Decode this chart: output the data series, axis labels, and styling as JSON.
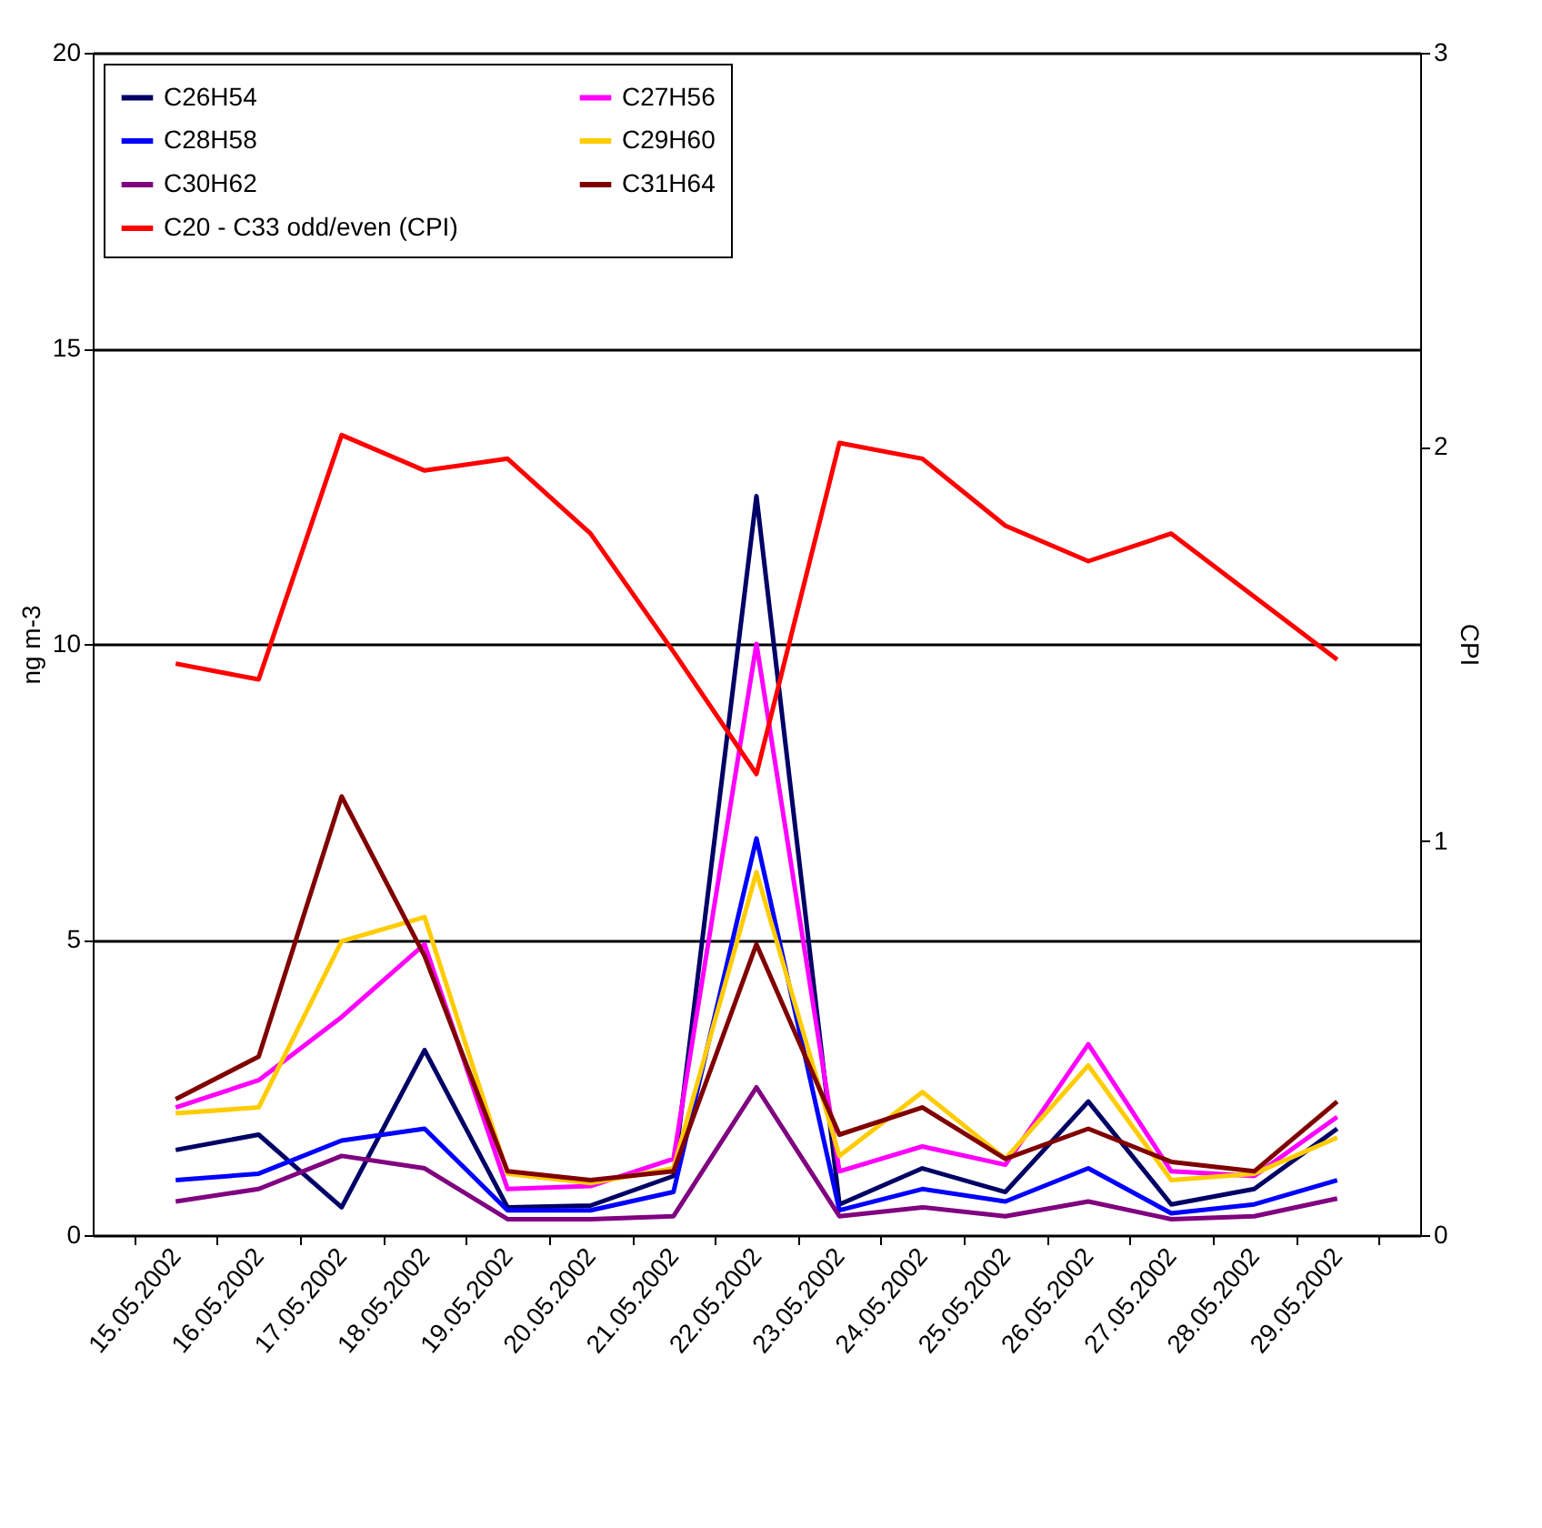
{
  "chart_data": {
    "type": "line",
    "ylabel": "ng m-3",
    "y2label": "CPI",
    "categories": [
      "15.05.2002",
      "16.05.2002",
      "17.05.2002",
      "18.05.2002",
      "19.05.2002",
      "20.05.2002",
      "21.05.2002",
      "22.05.2002",
      "23.05.2002",
      "24.05.2002",
      "25.05.2002",
      "26.05.2002",
      "27.05.2002",
      "28.05.2002",
      "29.05.2002"
    ],
    "series": [
      {
        "name": "C26H54",
        "color": "#000066",
        "values": [
          1.44,
          1.7,
          0.47,
          3.13,
          0.47,
          0.5,
          1.0,
          12.5,
          0.52,
          1.13,
          0.73,
          2.26,
          0.52,
          0.78,
          1.8
        ]
      },
      {
        "name": "C27H56",
        "color": "#ff00ff",
        "values": [
          2.16,
          2.62,
          3.69,
          4.92,
          0.78,
          0.83,
          1.29,
          10.0,
          1.08,
          1.5,
          1.19,
          3.23,
          1.08,
          1.0,
          2.0
        ]
      },
      {
        "name": "C28H58",
        "color": "#0000ff",
        "values": [
          0.93,
          1.04,
          1.6,
          1.8,
          0.42,
          0.42,
          0.73,
          6.71,
          0.42,
          0.78,
          0.57,
          1.13,
          0.37,
          0.52,
          0.93
        ]
      },
      {
        "name": "C29H60",
        "color": "#ffcc00",
        "values": [
          2.06,
          2.16,
          4.97,
          5.38,
          1.04,
          0.88,
          1.13,
          6.14,
          1.34,
          2.42,
          1.29,
          2.87,
          0.93,
          1.04,
          1.65
        ]
      },
      {
        "name": "C30H62",
        "color": "#800080",
        "values": [
          0.57,
          0.78,
          1.34,
          1.13,
          0.27,
          0.27,
          0.32,
          2.5,
          0.32,
          0.47,
          0.32,
          0.57,
          0.27,
          0.32,
          0.62
        ]
      },
      {
        "name": "C31H64",
        "color": "#800000",
        "values": [
          2.3,
          3.02,
          7.42,
          4.72,
          1.08,
          0.93,
          1.08,
          4.92,
          1.7,
          2.16,
          1.29,
          1.8,
          1.24,
          1.08,
          2.26
        ]
      },
      {
        "name": "C20 - C33 odd/even (CPI)",
        "color": "#ff0000",
        "axis": "y2",
        "values": [
          1.45,
          1.41,
          2.03,
          1.94,
          1.97,
          1.78,
          1.48,
          1.17,
          2.01,
          1.97,
          1.8,
          1.71,
          1.78,
          1.62,
          1.46
        ]
      }
    ],
    "ylim": [
      0,
      20
    ],
    "yticks": [
      0,
      5,
      10,
      15,
      20
    ],
    "y2lim": [
      0,
      3
    ],
    "y2ticks": [
      0,
      1,
      2,
      3
    ],
    "grid": "y",
    "legend": "top left"
  }
}
